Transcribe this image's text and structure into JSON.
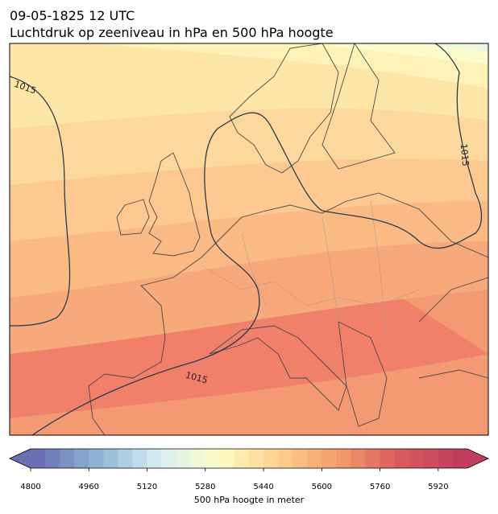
{
  "map": {
    "title": "09-05-1825 12 UTC",
    "subtitle": "Luchtdruk op zeeniveau in hPa en 500 hPa hoogte",
    "contour_labels": [
      "1015",
      "1015",
      "1015"
    ]
  },
  "colorbar": {
    "label": "500 hPa hoogte in meter",
    "vlim": [
      4800,
      6000
    ],
    "ticks": [
      4800,
      4960,
      5120,
      5280,
      5440,
      5600,
      5760,
      5920
    ],
    "step": 40,
    "colormap": [
      "#6a6fb3",
      "#8fb5d3",
      "#d8eef4",
      "#fdfcc6",
      "#fdd08f",
      "#f49a6c",
      "#d95a5e",
      "#c13d5e"
    ]
  }
}
